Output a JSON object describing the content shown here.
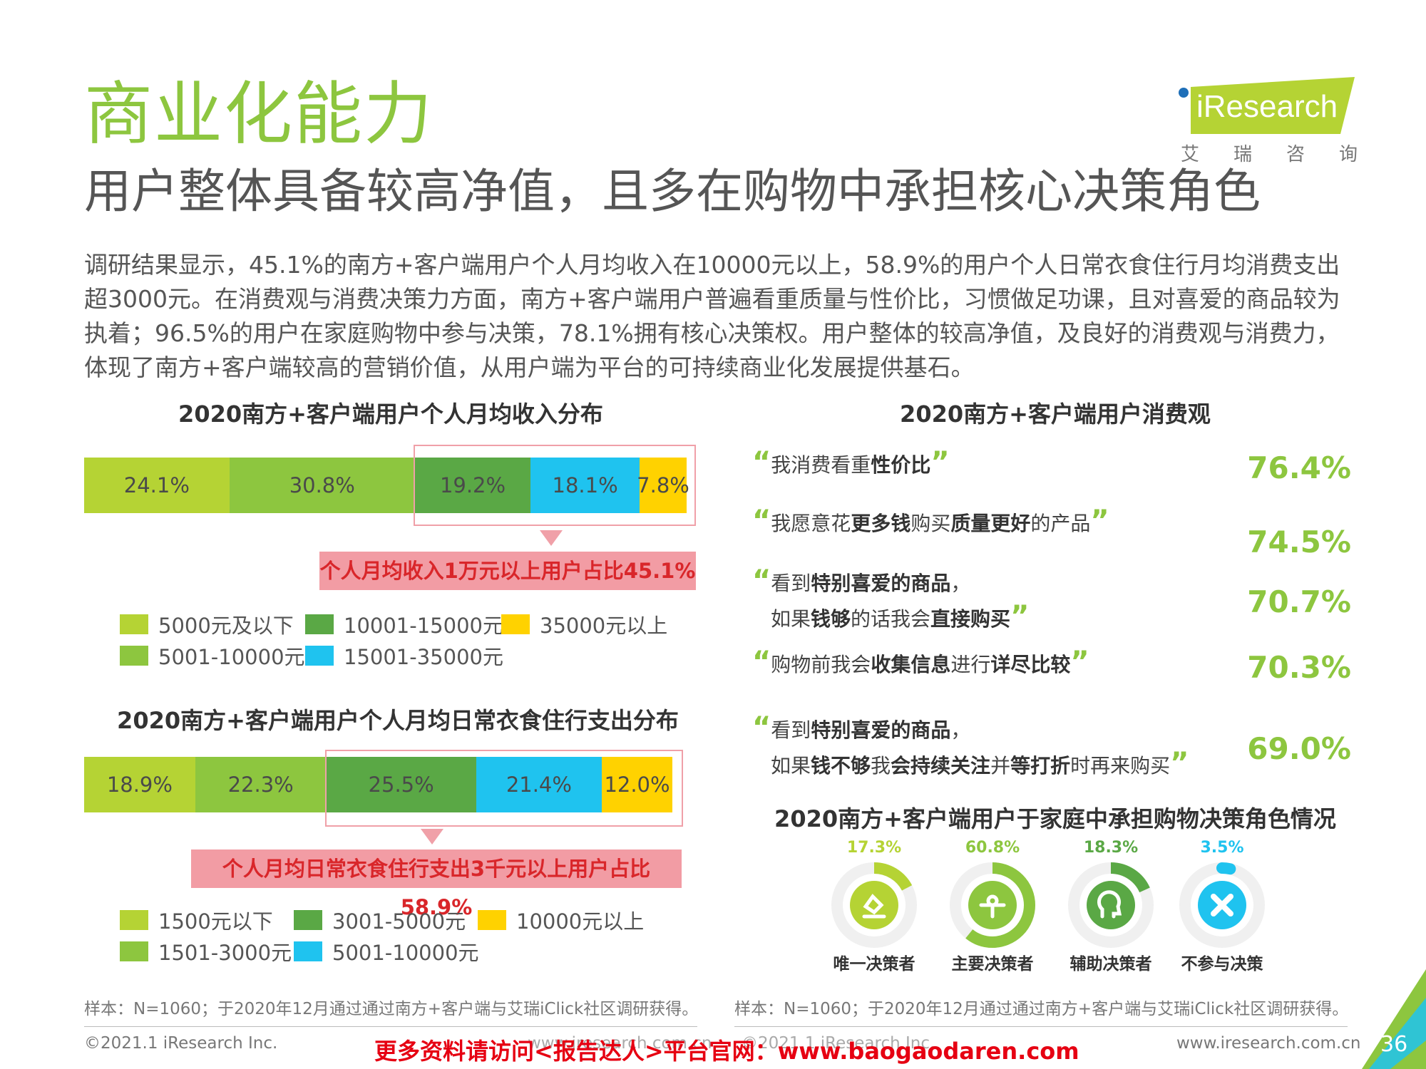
{
  "header": {
    "title": "商业化能力",
    "subtitle": "用户整体具备较高净值，且多在购物中承担核心决策角色",
    "logo_text": "iResearch",
    "logo_cn": "艾瑞咨询",
    "paragraph": "调研结果显示，45.1%的南方+客户端用户个人月均收入在10000元以上，58.9%的用户个人日常衣食住行月均消费支出超3000元。在消费观与消费决策力方面，南方+客户端用户普遍看重质量与性价比，习惯做足功课，且对喜爱的商品较为执着；96.5%的用户在家庭购物中参与决策，78.1%拥有核心决策权。用户整体的较高净值，及良好的消费观与消费力，体现了南方+客户端较高的营销价值，从用户端为平台的可持续商业化发展提供基石。"
  },
  "colors": {
    "light_green": "#b5d334",
    "mid_green": "#8dc63f",
    "dark_green": "#5aa845",
    "cyan": "#1fc3ef",
    "yellow": "#ffd200",
    "callout_bg": "#f29ca4",
    "callout_text": "#d9262a"
  },
  "chart_data": [
    {
      "type": "bar",
      "title": "2020南方+客户端用户个人月均收入分布",
      "orientation": "horizontal-stacked-100",
      "series": [
        {
          "name": "5000元及以下",
          "value": 24.1,
          "label": "24.1%",
          "color": "#b5d334"
        },
        {
          "name": "5001-10000元",
          "value": 30.8,
          "label": "30.8%",
          "color": "#8dc63f"
        },
        {
          "name": "10001-15000元",
          "value": 19.2,
          "label": "19.2%",
          "color": "#5aa845"
        },
        {
          "name": "15001-35000元",
          "value": 18.1,
          "label": "18.1%",
          "color": "#1fc3ef"
        },
        {
          "name": "35000元以上",
          "value": 7.8,
          "label": "7.8%",
          "color": "#ffd200"
        }
      ],
      "annotation": "个人月均收入1万元以上用户占比45.1%"
    },
    {
      "type": "bar",
      "title": "2020南方+客户端用户个人月均日常衣食住行支出分布",
      "orientation": "horizontal-stacked-100",
      "series": [
        {
          "name": "1500元以下",
          "value": 18.9,
          "label": "18.9%",
          "color": "#b5d334"
        },
        {
          "name": "1501-3000元",
          "value": 22.3,
          "label": "22.3%",
          "color": "#8dc63f"
        },
        {
          "name": "3001-5000元",
          "value": 25.5,
          "label": "25.5%",
          "color": "#5aa845"
        },
        {
          "name": "5001-10000元",
          "value": 21.4,
          "label": "21.4%",
          "color": "#1fc3ef"
        },
        {
          "name": "10000元以上",
          "value": 12.0,
          "label": "12.0%",
          "color": "#ffd200"
        }
      ],
      "annotation": "个人月均日常衣食住行支出3千元以上用户占比58.9%"
    },
    {
      "type": "table",
      "title": "2020南方+客户端用户消费观",
      "rows": [
        {
          "parts": [
            [
              "我消费看重",
              false
            ],
            [
              "性价比",
              true
            ]
          ],
          "value": "76.4%"
        },
        {
          "parts": [
            [
              "我愿意花",
              false
            ],
            [
              "更多钱",
              true
            ],
            [
              "购买",
              false
            ],
            [
              "质量更好",
              true
            ],
            [
              "的产品",
              false
            ]
          ],
          "value": "74.5%"
        },
        {
          "parts": [
            [
              "看到",
              false
            ],
            [
              "特别喜爱的商品",
              true
            ],
            [
              "，\n如果",
              false
            ],
            [
              "钱够",
              true
            ],
            [
              "的话我会",
              false
            ],
            [
              "直接购买",
              true
            ]
          ],
          "value": "70.7%"
        },
        {
          "parts": [
            [
              "购物前我会",
              false
            ],
            [
              "收集信息",
              true
            ],
            [
              "进行",
              false
            ],
            [
              "详尽比较",
              true
            ]
          ],
          "value": "70.3%"
        },
        {
          "parts": [
            [
              "看到",
              false
            ],
            [
              "特别喜爱的商品",
              true
            ],
            [
              "，\n如果",
              false
            ],
            [
              "钱不够",
              true
            ],
            [
              "我",
              false
            ],
            [
              "会持续关注",
              true
            ],
            [
              "并",
              false
            ],
            [
              "等打折",
              true
            ],
            [
              "时再来购买",
              false
            ]
          ],
          "value": "69.0%"
        }
      ]
    },
    {
      "type": "pie",
      "title": "2020南方+客户端用户于家庭中承担购物决策角色情况",
      "series": [
        {
          "name": "唯一决策者",
          "value": 17.3,
          "label": "17.3%",
          "color": "#b5d334",
          "icon": "hammer-icon"
        },
        {
          "name": "主要决策者",
          "value": 60.8,
          "label": "60.8%",
          "color": "#8dc63f",
          "icon": "person-arrows-icon"
        },
        {
          "name": "辅助决策者",
          "value": 18.3,
          "label": "18.3%",
          "color": "#5aa845",
          "icon": "thought-head-icon"
        },
        {
          "name": "不参与决策",
          "value": 3.5,
          "label": "3.5%",
          "color": "#1fc3ef",
          "icon": "cross-icon"
        }
      ]
    }
  ],
  "sources": {
    "left": "样本：N=1060；于2020年12月通过通过南方+客户端与艾瑞iClick社区调研获得。",
    "right": "样本：N=1060；于2020年12月通过通过南方+客户端与艾瑞iClick社区调研获得。"
  },
  "footer": {
    "copyright": "©2021.1 iResearch Inc.",
    "mid_partial": "www.iresearch.com.cn",
    "mid_partial2": "©2021.1 iResearch Inc.",
    "promo": "更多资料请访问<报告达人>平台官网：www.baogaodaren.com",
    "website": "www.iresearch.com.cn",
    "page_number": "36"
  }
}
